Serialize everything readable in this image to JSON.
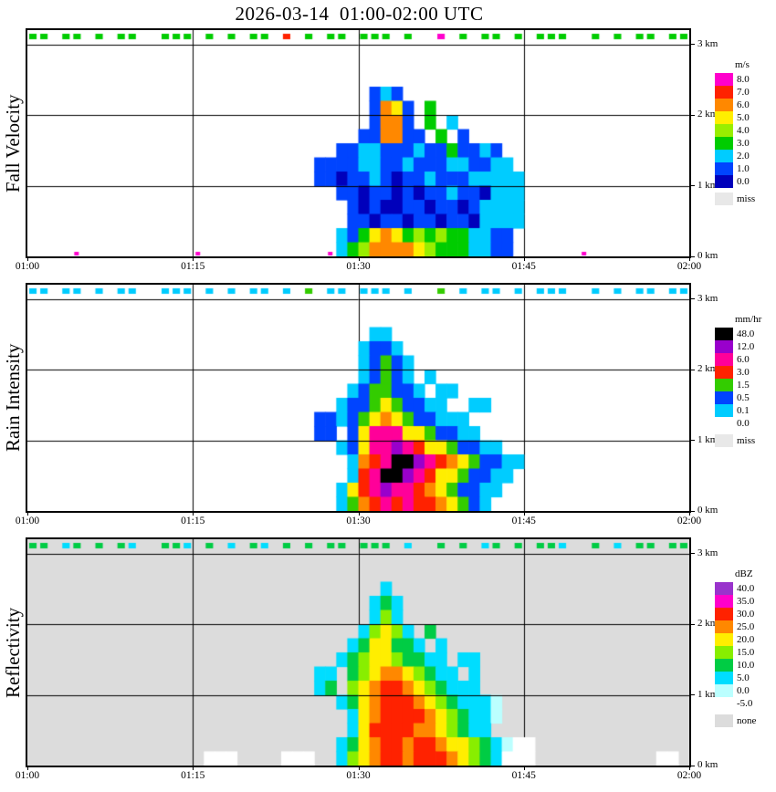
{
  "title": "2026-03-14  01:00-02:00 UTC",
  "chart_data": {
    "type": "heatmap",
    "title": "2026-03-14  01:00-02:00 UTC",
    "x": {
      "ticks": [
        "01:00",
        "01:15",
        "01:30",
        "01:45",
        "02:00"
      ],
      "grid_minutes": [
        15,
        30,
        45
      ],
      "total_minutes": 60
    },
    "y": {
      "top_km": 3.2,
      "bottom_km": 0,
      "ticks": [
        "3 km",
        "2 km",
        "1 km",
        "0 km"
      ],
      "gridlines_km": [
        1,
        2,
        3
      ]
    },
    "panels": [
      {
        "label": "Fall Velocity",
        "unit": "m/s",
        "background": "#ffffff",
        "legend": [
          {
            "label": "8.0",
            "color": "#ff00cc"
          },
          {
            "label": "7.0",
            "color": "#ff2200"
          },
          {
            "label": "6.0",
            "color": "#ff8800"
          },
          {
            "label": "5.0",
            "color": "#ffee00"
          },
          {
            "label": "4.0",
            "color": "#99ee00"
          },
          {
            "label": "3.0",
            "color": "#00cc00"
          },
          {
            "label": "2.0",
            "color": "#00ccff"
          },
          {
            "label": "1.0",
            "color": "#0044ff"
          },
          {
            "label": "0.0",
            "color": "#0000bb"
          }
        ],
        "missing": {
          "label": "miss",
          "color": "#e8e8e8"
        },
        "palette": {
          "0": {
            "v": 0.5,
            "color": "#0000bb"
          },
          "1": {
            "v": 1.0,
            "color": "#0044ff"
          },
          "2": {
            "v": 2.0,
            "color": "#00ccff"
          },
          "3": {
            "v": 3.0,
            "color": "#00cc00"
          },
          "4": {
            "v": 4.0,
            "color": "#99ee00"
          },
          "5": {
            "v": 5.0,
            "color": "#ffee00"
          },
          "6": {
            "v": 6.0,
            "color": "#ff8800"
          },
          "7": {
            "v": 7.0,
            "color": "#ff2200"
          },
          "8": {
            "v": 8.0,
            "color": "#ff00cc"
          }
        },
        "dots": [
          {
            "col": 4,
            "char": "8"
          },
          {
            "col": 15,
            "char": "8"
          },
          {
            "col": 27,
            "char": "8"
          },
          {
            "col": 50,
            "char": "8"
          }
        ],
        "grid": [
          "33.33.3.33..333.3.3.33.7.3.33.333.3..8.3.33.3.333..3.3.33.33",
          "............................................................",
          "............................................................",
          "............................................................",
          "...............................121..........................",
          "...............................1651.3......................",
          "...............................1661.3.2....................",
          "..............................116611.3.1...................",
          "............................112211121131121................",
          "..........................111122112111221122...............",
          "..........................1101121011211122222..............",
          "............................11011010112110222..............",
          ".............................1010011011012222..............",
          ".............................1101101101102222..............",
          "............................2135653434332211...............",
          "............................2346666543332211..............."
        ]
      },
      {
        "label": "Rain Intensity",
        "unit": "mm/hr",
        "background": "#ffffff",
        "legend": [
          {
            "label": "48.0",
            "color": "#000000"
          },
          {
            "label": "12.0",
            "color": "#9900cc"
          },
          {
            "label": "6.0",
            "color": "#ff0099"
          },
          {
            "label": "3.0",
            "color": "#ff2200"
          },
          {
            "label": "1.5",
            "color": "#33cc00"
          },
          {
            "label": "0.5",
            "color": "#0044ff"
          },
          {
            "label": "0.1",
            "color": "#00ccff"
          },
          {
            "label": "0.0",
            "color": "#ffffff"
          }
        ],
        "missing": {
          "label": "miss",
          "color": "#e8e8e8"
        },
        "palette": {
          "k": {
            "v": 48.0,
            "color": "#000000"
          },
          "p": {
            "v": 12.0,
            "color": "#9900cc"
          },
          "m": {
            "v": 6.0,
            "color": "#ff0099"
          },
          "r": {
            "v": 3.0,
            "color": "#ff2200"
          },
          "o": {
            "v": 2.5,
            "color": "#ff8800"
          },
          "y": {
            "v": 2.0,
            "color": "#ffee00"
          },
          "g": {
            "v": 1.5,
            "color": "#33cc00"
          },
          "b": {
            "v": 0.5,
            "color": "#0044ff"
          },
          "c": {
            "v": 0.1,
            "color": "#00ccff"
          },
          "w": {
            "v": 0.0,
            "color": "#ffffff"
          }
        },
        "grid": [
          "cc.cc.c.cc..ccc.c.c.cc.c.g.cc.ccc.c..g.c.cc.c.ccc..c.c.cc.cc",
          "............................................................",
          "............................................................",
          "...............................cc..........................",
          "..............................cbbc.........................",
          "..............................cbgbc........................",
          "..............................cbgbc.c......................",
          ".............................cbggbbc.cc....................",
          "............................cbbgygbbcc..cc.................",
          "..........................bbcbgyoygbbccc...................",
          "..........................bb.bymmmyygbbcc..................",
          "............................cbymmpmryygbbcc................",
          ".............................cormkkpmroygbbcc..............",
          ".............................crmkkpmryygbbcc...............",
          "............................cyrmpmmroygbbcc................",
          "............................cgormrmrroygbc................."
        ]
      },
      {
        "label": "Reflectivity",
        "unit": "dBZ",
        "background": "#dcdcdc",
        "legend": [
          {
            "label": "40.0",
            "color": "#9933cc"
          },
          {
            "label": "35.0",
            "color": "#ff00cc"
          },
          {
            "label": "30.0",
            "color": "#ff2200"
          },
          {
            "label": "25.0",
            "color": "#ff8800"
          },
          {
            "label": "20.0",
            "color": "#ffee00"
          },
          {
            "label": "15.0",
            "color": "#88ee00"
          },
          {
            "label": "10.0",
            "color": "#00cc44"
          },
          {
            "label": "5.0",
            "color": "#00ddff"
          },
          {
            "label": "0.0",
            "color": "#bbffff"
          },
          {
            "label": "-5.0",
            "color": "#ffffff"
          }
        ],
        "missing": {
          "label": "none",
          "color": "#dcdcdc"
        },
        "palette": {
          "P": {
            "v": 40,
            "color": "#9933cc"
          },
          "M": {
            "v": 35,
            "color": "#ff00cc"
          },
          "R": {
            "v": 30,
            "color": "#ff2200"
          },
          "O": {
            "v": 25,
            "color": "#ff8800"
          },
          "Y": {
            "v": 20,
            "color": "#ffee00"
          },
          "G": {
            "v": 15,
            "color": "#88ee00"
          },
          "h": {
            "v": 10,
            "color": "#00cc44"
          },
          "C": {
            "v": 5,
            "color": "#00ddff"
          },
          "L": {
            "v": 0,
            "color": "#bbffff"
          },
          "W": {
            "v": -5,
            "color": "#ffffff"
          }
        },
        "grid": [
          "hh.Ch.h.hC..hhC.h.C.hC.h.h.hh.hhh.C..h.h.Ch.h.hhC..h.C.hh.hh",
          "............................................................",
          "............................................................",
          "................................C...........................",
          "...............................ChC.........................",
          "...............................CGC.........................",
          "..............................CGYGC.h......................",
          ".............................ChYYhhC.C.....................",
          "............................ChGYYGhhCC.CC..................",
          "..........................CC.hGYOOYGhCC.C..................",
          "..........................Ch.GYORROYGhCCC..................",
          "............................ChYORRROYGhCCCL................",
          ".............................CYORRRROYGhCCL................",
          ".............................CYRRRROOYGhCC.................",
          "............................ChYORRORROYYGhCLWW.............",
          "................WWW....WWW..CGYORRORRROYGhCWWW...........WW."
        ]
      }
    ]
  }
}
